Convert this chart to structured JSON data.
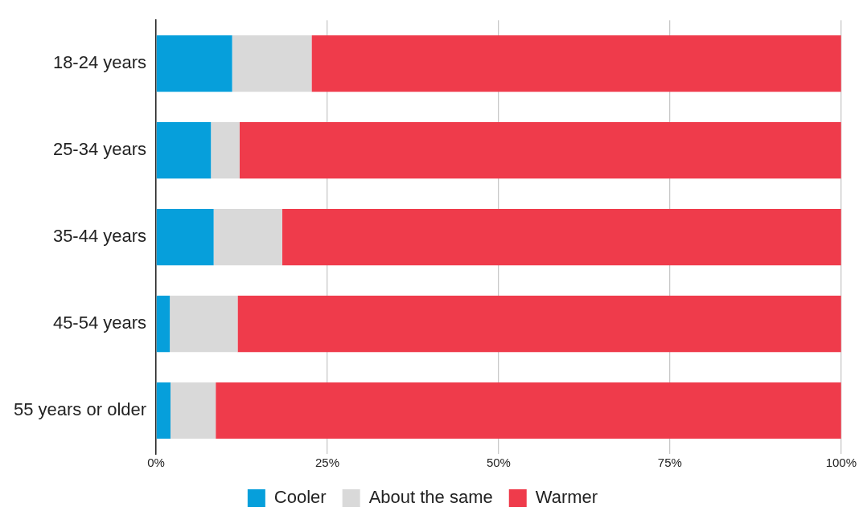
{
  "chart_data": {
    "type": "bar",
    "orientation": "horizontal",
    "stacked": true,
    "categories": [
      "18-24 years",
      "25-34 years",
      "35-44 years",
      "45-54 years",
      "55 years or older"
    ],
    "series": [
      {
        "name": "Cooler",
        "color": "#069fdb",
        "values": [
          11.1,
          8.0,
          8.4,
          2.0,
          2.1
        ]
      },
      {
        "name": "About the same",
        "color": "#d9d9d9",
        "values": [
          11.6,
          4.2,
          10.0,
          9.9,
          6.6
        ]
      },
      {
        "name": "Warmer",
        "color": "#ef3b4b",
        "values": [
          77.3,
          87.8,
          81.6,
          88.1,
          91.3
        ]
      }
    ],
    "xlim": [
      0,
      100
    ],
    "xticks": [
      {
        "value": 0,
        "label": "0%"
      },
      {
        "value": 25,
        "label": "25%"
      },
      {
        "value": 50,
        "label": "50%"
      },
      {
        "value": 75,
        "label": "75%"
      },
      {
        "value": 100,
        "label": "100%"
      }
    ],
    "grid": "x",
    "legend": "bottom"
  }
}
